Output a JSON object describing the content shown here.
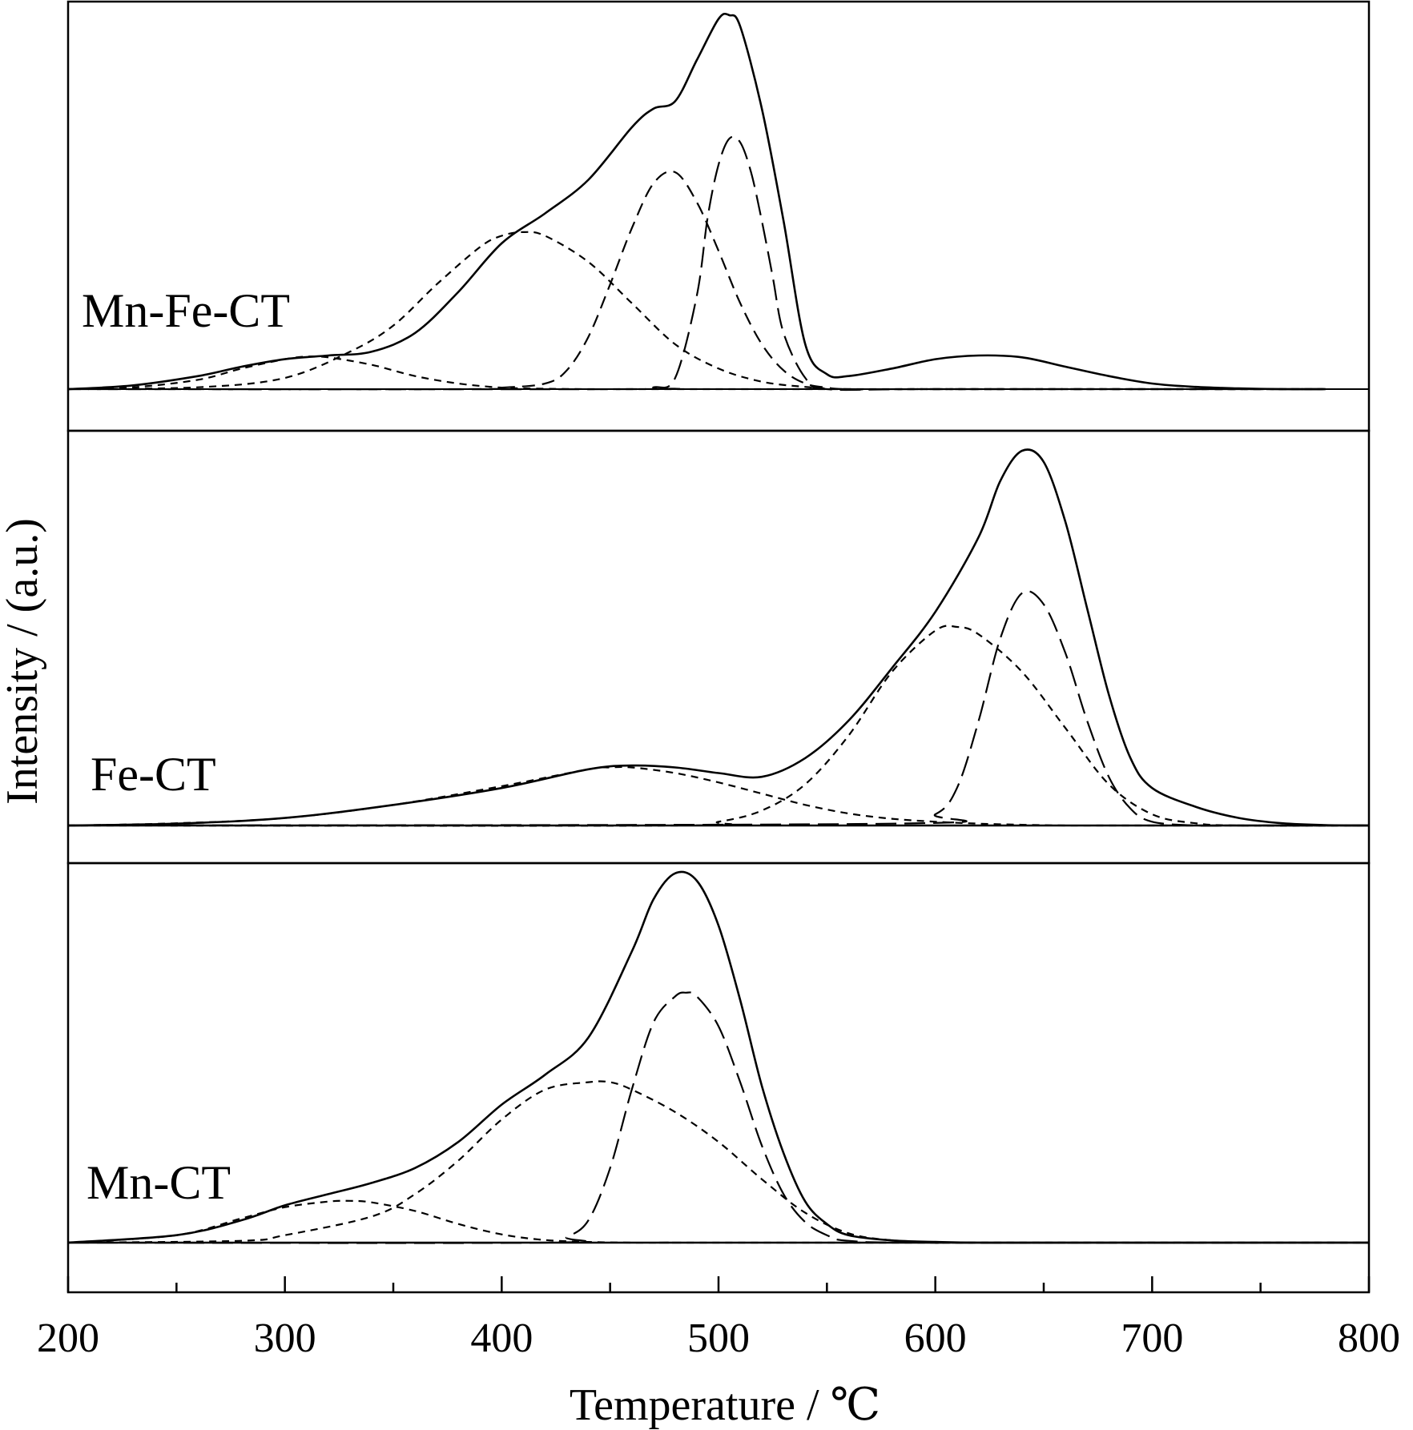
{
  "chart_data": {
    "type": "line",
    "xlabel": "Temperature / ℃",
    "ylabel": "Intensity / (a.u.)",
    "xlim": [
      200,
      800
    ],
    "xticks_major": [
      200,
      300,
      400,
      500,
      600,
      700,
      800
    ],
    "xticks_minor": [
      250,
      350,
      450,
      550,
      650,
      750
    ],
    "grid": false,
    "panels": [
      {
        "label": "Mn-Fe-CT",
        "xmax": 780,
        "ymax": 1.0,
        "series": [
          {
            "style": "solid",
            "kind": "measured",
            "x": [
              200,
              230,
              260,
              280,
              300,
              320,
              340,
              360,
              380,
              400,
              420,
              440,
              460,
              470,
              480,
              490,
              500,
              505,
              510,
              520,
              530,
              540,
              550,
              560,
              580,
              600,
              620,
              640,
              660,
              680,
              700,
              720,
              740,
              760,
              780
            ],
            "y": [
              0.0,
              0.01,
              0.035,
              0.06,
              0.08,
              0.09,
              0.1,
              0.15,
              0.26,
              0.39,
              0.47,
              0.56,
              0.7,
              0.75,
              0.77,
              0.88,
              0.99,
              1.0,
              0.97,
              0.75,
              0.45,
              0.12,
              0.04,
              0.035,
              0.055,
              0.08,
              0.09,
              0.085,
              0.06,
              0.035,
              0.015,
              0.006,
              0.002,
              0.0,
              0.0
            ]
          },
          {
            "style": "dashed-short",
            "kind": "fit",
            "x": [
              200,
              230,
              260,
              280,
              300,
              310,
              320,
              340,
              360,
              380,
              400,
              420,
              440,
              460,
              480,
              500,
              520,
              540,
              560,
              600,
              700,
              780
            ],
            "y": [
              0.0,
              0.005,
              0.025,
              0.055,
              0.08,
              0.087,
              0.085,
              0.065,
              0.035,
              0.015,
              0.004,
              0.001,
              0.0,
              0.0,
              0.0,
              0.0,
              0.0,
              0.0,
              0.0,
              0.0,
              0.0,
              0.0
            ]
          },
          {
            "style": "dashed-short",
            "kind": "fit",
            "x": [
              200,
              260,
              300,
              330,
              350,
              370,
              390,
              400,
              410,
              420,
              440,
              460,
              480,
              500,
              520,
              540,
              560,
              600,
              780
            ],
            "y": [
              0.0,
              0.005,
              0.03,
              0.1,
              0.17,
              0.28,
              0.38,
              0.41,
              0.42,
              0.41,
              0.34,
              0.23,
              0.12,
              0.055,
              0.02,
              0.006,
              0.0,
              0.0,
              0.0
            ]
          },
          {
            "style": "dashed-medium",
            "kind": "fit",
            "x": [
              200,
              380,
              400,
              420,
              430,
              440,
              450,
              460,
              470,
              480,
              490,
              500,
              510,
              520,
              530,
              540,
              550,
              560,
              600,
              780
            ],
            "y": [
              0.0,
              0.0,
              0.004,
              0.015,
              0.05,
              0.14,
              0.28,
              0.43,
              0.55,
              0.58,
              0.5,
              0.37,
              0.23,
              0.12,
              0.05,
              0.015,
              0.004,
              0.0,
              0.0,
              0.0
            ]
          },
          {
            "style": "dashed-long",
            "kind": "fit",
            "x": [
              200,
              460,
              470,
              480,
              490,
              495,
              500,
              505,
              510,
              515,
              520,
              525,
              530,
              540,
              550,
              600,
              780
            ],
            "y": [
              0.0,
              0.0,
              0.005,
              0.03,
              0.25,
              0.46,
              0.6,
              0.67,
              0.66,
              0.58,
              0.45,
              0.3,
              0.15,
              0.03,
              0.0,
              0.0,
              0.0
            ]
          }
        ]
      },
      {
        "label": "Fe-CT",
        "xmax": 800,
        "ymax": 1.0,
        "series": [
          {
            "style": "solid",
            "kind": "measured",
            "x": [
              200,
              250,
              300,
              350,
              400,
              440,
              460,
              480,
              500,
              520,
              540,
              560,
              580,
              600,
              620,
              630,
              640,
              650,
              660,
              670,
              680,
              690,
              700,
              720,
              740,
              760,
              780,
              800
            ],
            "y": [
              0.0,
              0.005,
              0.02,
              0.055,
              0.1,
              0.15,
              0.16,
              0.155,
              0.14,
              0.13,
              0.18,
              0.28,
              0.42,
              0.57,
              0.77,
              0.92,
              1.0,
              0.97,
              0.81,
              0.58,
              0.35,
              0.18,
              0.1,
              0.05,
              0.02,
              0.006,
              0.001,
              0.0
            ]
          },
          {
            "style": "dashed-short",
            "kind": "fit",
            "x": [
              200,
              250,
              300,
              350,
              400,
              440,
              450,
              460,
              480,
              500,
              520,
              540,
              560,
              580,
              600,
              620,
              640,
              660,
              680,
              700,
              800
            ],
            "y": [
              0.0,
              0.006,
              0.02,
              0.055,
              0.105,
              0.15,
              0.155,
              0.155,
              0.14,
              0.115,
              0.085,
              0.055,
              0.032,
              0.018,
              0.01,
              0.005,
              0.002,
              0.0,
              0.0,
              0.0,
              0.0
            ]
          },
          {
            "style": "dashed-short",
            "kind": "fit",
            "x": [
              200,
              480,
              500,
              520,
              540,
              560,
              580,
              600,
              610,
              620,
              640,
              660,
              680,
              700,
              720,
              740,
              800
            ],
            "y": [
              0.0,
              0.0,
              0.01,
              0.04,
              0.11,
              0.24,
              0.41,
              0.52,
              0.53,
              0.51,
              0.41,
              0.26,
              0.11,
              0.03,
              0.006,
              0.0,
              0.0
            ]
          },
          {
            "style": "dashed-long",
            "kind": "fit",
            "x": [
              200,
              580,
              600,
              610,
              620,
              630,
              640,
              650,
              660,
              670,
              680,
              690,
              700,
              720,
              740,
              800
            ],
            "y": [
              0.0,
              0.005,
              0.03,
              0.1,
              0.28,
              0.5,
              0.62,
              0.59,
              0.46,
              0.28,
              0.13,
              0.045,
              0.01,
              0.0,
              0.0,
              0.0
            ]
          }
        ]
      },
      {
        "label": "Mn-CT",
        "xmax": 800,
        "ymax": 1.0,
        "series": [
          {
            "style": "solid",
            "kind": "measured",
            "x": [
              200,
              250,
              280,
              300,
              320,
              340,
              360,
              380,
              400,
              420,
              440,
              460,
              470,
              480,
              490,
              500,
              510,
              520,
              530,
              540,
              550,
              560,
              580,
              600,
              620,
              660,
              800
            ],
            "y": [
              0.0,
              0.02,
              0.06,
              0.1,
              0.13,
              0.16,
              0.2,
              0.27,
              0.37,
              0.45,
              0.55,
              0.78,
              0.92,
              0.99,
              0.97,
              0.85,
              0.65,
              0.42,
              0.24,
              0.11,
              0.05,
              0.02,
              0.006,
              0.002,
              0.0,
              0.0,
              0.0
            ]
          },
          {
            "style": "dashed-short",
            "kind": "fit",
            "x": [
              200,
              250,
              280,
              300,
              320,
              330,
              340,
              360,
              380,
              400,
              420,
              440,
              460,
              480,
              500,
              800
            ],
            "y": [
              0.0,
              0.02,
              0.065,
              0.095,
              0.11,
              0.112,
              0.108,
              0.085,
              0.05,
              0.022,
              0.007,
              0.002,
              0.0,
              0.0,
              0.0,
              0.0
            ]
          },
          {
            "style": "dashed-short",
            "kind": "fit",
            "x": [
              200,
              280,
              300,
              340,
              360,
              380,
              400,
              420,
              440,
              450,
              460,
              480,
              500,
              520,
              540,
              560,
              580,
              600,
              620,
              800
            ],
            "y": [
              0.0,
              0.005,
              0.02,
              0.07,
              0.13,
              0.22,
              0.33,
              0.41,
              0.43,
              0.43,
              0.41,
              0.35,
              0.27,
              0.17,
              0.08,
              0.025,
              0.006,
              0.0,
              0.0,
              0.0
            ]
          },
          {
            "style": "dashed-long",
            "kind": "fit",
            "x": [
              200,
              420,
              430,
              440,
              450,
              460,
              470,
              480,
              485,
              490,
              500,
              510,
              520,
              530,
              540,
              550,
              560,
              600,
              800
            ],
            "y": [
              0.0,
              0.0,
              0.015,
              0.06,
              0.2,
              0.41,
              0.59,
              0.66,
              0.67,
              0.66,
              0.58,
              0.43,
              0.26,
              0.13,
              0.055,
              0.02,
              0.005,
              0.0,
              0.0
            ]
          }
        ]
      }
    ]
  }
}
